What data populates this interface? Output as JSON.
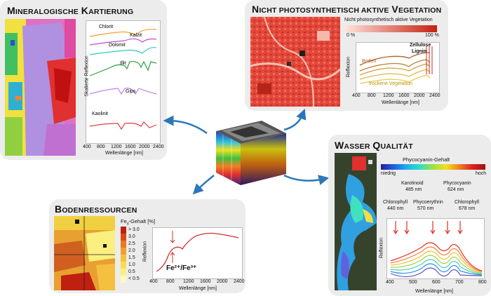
{
  "panels": {
    "mineral": {
      "title_first": "M",
      "title_rest": "INERALOGISCHE",
      "title_first2": "K",
      "title_rest2": "ARTIERUNG",
      "ylabel": "Skalierte Reflexion",
      "xlabel": "Wellenlänge [nm]",
      "xticks": [
        "400",
        "800",
        "1200",
        "1600",
        "2000",
        "2400"
      ],
      "minerals": [
        "Chlorit",
        "Kalzit",
        "Dolomit",
        "Illit",
        "Gips",
        "Kaolinit"
      ],
      "colors": {
        "Chlorit": "#f0a030",
        "Kalzit": "#c050d0",
        "Dolomit": "#30c8c8",
        "Illit": "#30a040",
        "Gips": "#c080f0",
        "Kaolinit": "#e04040"
      }
    },
    "npv": {
      "title_first": "N",
      "title_rest": "ICHT PHOTOSYNTHETISCH AKTIVE",
      "title_first2": "V",
      "title_rest2": "EGETATION",
      "colorbar_label": "Nicht photosynthetisch aktive Vegetation",
      "cb_min": "0 %",
      "cb_max": "100 %",
      "label_cellulose": "Zellulose",
      "label_lignin": "Lignin",
      "label_soil": "Boden",
      "label_dry": "trockene Vegetation",
      "ylabel": "Reflexion",
      "xlabel": "Wellenlänge [nm]",
      "xticks": [
        "400",
        "800",
        "1200",
        "1600",
        "2000",
        "2400"
      ]
    },
    "soil": {
      "title_first": "B",
      "title_rest": "ODENRESSOURCEN",
      "legend_title": "Fe",
      "legend_sub": "d",
      "legend_title_rest": "-Gehalt [%]",
      "legend_items": [
        "> 3.0",
        "3.0",
        "2.5",
        "2.0",
        "1.5",
        "1.0",
        "0.5",
        "< 0.5"
      ],
      "legend_colors": [
        "#c02010",
        "#d84a18",
        "#e87a20",
        "#f0a030",
        "#f5c040",
        "#f8dc50",
        "#fbef80",
        "#fff8c0"
      ],
      "ylabel": "Reflexion",
      "xlabel": "Wellenlänge [nm]",
      "xticks": [
        "400",
        "800",
        "1200",
        "1600",
        "2000",
        "2400"
      ],
      "ion_label": "Fe²⁺/Fe³⁺"
    },
    "water": {
      "title_first": "W",
      "title_rest": "ASSER",
      "title_first2": "Q",
      "title_rest2": "UALITÄT",
      "colorbar_label": "Phycocyanin-Gehalt",
      "cb_low": "niedrig",
      "cb_high": "hoch",
      "pigments": [
        {
          "name": "Karotinoid",
          "wl": "485 nm"
        },
        {
          "name": "Phycocyanin",
          "wl": "624 nm"
        },
        {
          "name": "Chlorophyll",
          "wl": "440 nm"
        },
        {
          "name": "Phycoerythrin",
          "wl": "570 nm"
        },
        {
          "name": "Chlorophyll",
          "wl": "678 nm"
        }
      ],
      "ylabel": "Reflexion",
      "xlabel": "Wellenlänge [nm]",
      "xticks": [
        "400",
        "500",
        "600",
        "700",
        "800"
      ]
    }
  }
}
